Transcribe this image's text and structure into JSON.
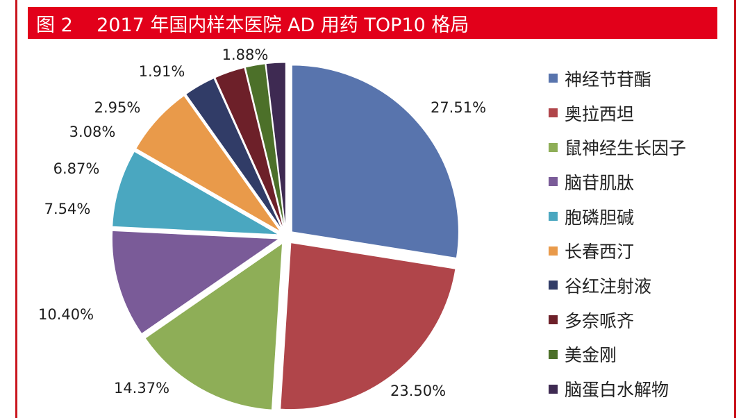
{
  "figure": {
    "title": "图 2    2017 年国内样本医院 AD 用药 TOP10 格局"
  },
  "chart_data": {
    "type": "pie",
    "title": "图 2    2017 年国内样本医院 AD 用药 TOP10 格局",
    "legend_position": "right",
    "slices": [
      {
        "name": "神经节苷酯",
        "value": 27.51,
        "label": "27.51%",
        "color": "#5874ad"
      },
      {
        "name": "奥拉西坦",
        "value": 23.5,
        "label": "23.50%",
        "color": "#b0454a"
      },
      {
        "name": "鼠神经生长因子",
        "value": 14.37,
        "label": "14.37%",
        "color": "#8eae57"
      },
      {
        "name": "脑苷肌肽",
        "value": 10.4,
        "label": "10.40%",
        "color": "#7a5b98"
      },
      {
        "name": "胞磷胆碱",
        "value": 7.54,
        "label": "7.54%",
        "color": "#4aa7c0"
      },
      {
        "name": "长春西汀",
        "value": 6.87,
        "label": "6.87%",
        "color": "#e99a4a"
      },
      {
        "name": "谷红注射液",
        "value": 3.08,
        "label": "3.08%",
        "color": "#313c67"
      },
      {
        "name": "多奈哌齐",
        "value": 2.95,
        "label": "2.95%",
        "color": "#6d2029"
      },
      {
        "name": "美金刚",
        "value": 1.91,
        "label": "1.91%",
        "color": "#4c7029"
      },
      {
        "name": "脑蛋白水解物",
        "value": 1.88,
        "label": "1.88%",
        "color": "#3e2a52"
      }
    ]
  }
}
